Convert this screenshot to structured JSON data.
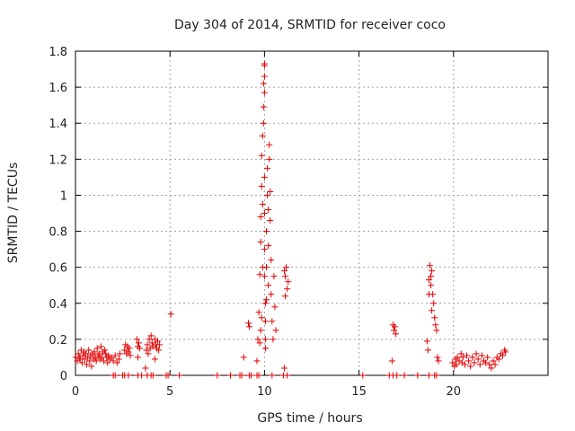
{
  "chart_data": {
    "type": "scatter",
    "title": "Day 304 of 2014, SRMTID for receiver coco",
    "xlabel": "GPS time / hours",
    "ylabel": "SRMTID / TECUs",
    "xlim": [
      0,
      25
    ],
    "ylim": [
      0,
      1.8
    ],
    "xticks": [
      "0",
      "5",
      "10",
      "15",
      "20"
    ],
    "yticks": [
      "0",
      "0.2",
      "0.4",
      "0.6",
      "0.8",
      "1",
      "1.2",
      "1.4",
      "1.6",
      "1.8"
    ],
    "grid": true,
    "marker": "+",
    "color": "#e00000",
    "series": [
      {
        "name": "SRMTID",
        "points": [
          [
            0.02,
            0.1
          ],
          [
            0.1,
            0.08
          ],
          [
            0.15,
            0.12
          ],
          [
            0.2,
            0.1
          ],
          [
            0.25,
            0.09
          ],
          [
            0.3,
            0.14
          ],
          [
            0.35,
            0.07
          ],
          [
            0.4,
            0.11
          ],
          [
            0.45,
            0.13
          ],
          [
            0.5,
            0.09
          ],
          [
            0.55,
            0.12
          ],
          [
            0.6,
            0.06
          ],
          [
            0.65,
            0.1
          ],
          [
            0.7,
            0.14
          ],
          [
            0.75,
            0.08
          ],
          [
            0.8,
            0.11
          ],
          [
            0.85,
            0.05
          ],
          [
            0.9,
            0.12
          ],
          [
            0.95,
            0.09
          ],
          [
            1.0,
            0.13
          ],
          [
            1.05,
            0.1
          ],
          [
            1.1,
            0.08
          ],
          [
            1.15,
            0.15
          ],
          [
            1.2,
            0.11
          ],
          [
            1.25,
            0.12
          ],
          [
            1.3,
            0.09
          ],
          [
            1.35,
            0.16
          ],
          [
            1.4,
            0.1
          ],
          [
            1.45,
            0.13
          ],
          [
            1.5,
            0.08
          ],
          [
            1.55,
            0.14
          ],
          [
            1.6,
            0.12
          ],
          [
            1.65,
            0.1
          ],
          [
            1.7,
            0.07
          ],
          [
            1.75,
            0.11
          ],
          [
            1.8,
            0.09
          ],
          [
            1.9,
            0.1
          ],
          [
            2.0,
            0.08
          ],
          [
            2.1,
            0.11
          ],
          [
            2.2,
            0.07
          ],
          [
            2.3,
            0.09
          ],
          [
            2.35,
            0.12
          ],
          [
            2.6,
            0.14
          ],
          [
            2.65,
            0.17
          ],
          [
            2.7,
            0.12
          ],
          [
            2.75,
            0.16
          ],
          [
            2.8,
            0.13
          ],
          [
            2.85,
            0.15
          ],
          [
            2.9,
            0.11
          ],
          [
            3.25,
            0.2
          ],
          [
            3.3,
            0.16
          ],
          [
            3.35,
            0.18
          ],
          [
            3.4,
            0.15
          ],
          [
            3.3,
            0.1
          ],
          [
            3.7,
            0.04
          ],
          [
            3.75,
            0.14
          ],
          [
            3.8,
            0.17
          ],
          [
            3.85,
            0.12
          ],
          [
            3.9,
            0.2
          ],
          [
            3.95,
            0.15
          ],
          [
            4.0,
            0.22
          ],
          [
            4.05,
            0.18
          ],
          [
            4.1,
            0.16
          ],
          [
            4.2,
            0.2
          ],
          [
            4.25,
            0.17
          ],
          [
            4.3,
            0.15
          ],
          [
            4.35,
            0.19
          ],
          [
            4.4,
            0.14
          ],
          [
            4.45,
            0.17
          ],
          [
            4.2,
            0.09
          ],
          [
            5.05,
            0.34
          ],
          [
            8.9,
            0.1
          ],
          [
            9.15,
            0.29
          ],
          [
            9.2,
            0.27
          ],
          [
            9.6,
            0.08
          ],
          [
            9.65,
            0.2
          ],
          [
            9.7,
            0.35
          ],
          [
            9.75,
            0.56
          ],
          [
            9.8,
            0.74
          ],
          [
            9.8,
            0.88
          ],
          [
            9.85,
            1.05
          ],
          [
            9.85,
            1.22
          ],
          [
            9.9,
            0.6
          ],
          [
            9.9,
            0.95
          ],
          [
            9.9,
            1.33
          ],
          [
            9.95,
            1.49
          ],
          [
            9.95,
            1.62
          ],
          [
            10.0,
            1.72
          ],
          [
            10.0,
            1.73
          ],
          [
            10.0,
            1.66
          ],
          [
            10.0,
            1.57
          ],
          [
            9.95,
            1.4
          ],
          [
            10.0,
            1.1
          ],
          [
            10.0,
            0.9
          ],
          [
            10.0,
            0.7
          ],
          [
            10.0,
            0.55
          ],
          [
            10.05,
            0.4
          ],
          [
            10.05,
            0.3
          ],
          [
            10.05,
            0.2
          ],
          [
            10.05,
            0.15
          ],
          [
            10.1,
            0.42
          ],
          [
            10.1,
            0.6
          ],
          [
            10.1,
            0.8
          ],
          [
            10.15,
            1.0
          ],
          [
            10.15,
            1.15
          ],
          [
            10.2,
            0.92
          ],
          [
            10.2,
            0.72
          ],
          [
            10.2,
            0.5
          ],
          [
            10.25,
            1.28
          ],
          [
            10.25,
            1.2
          ],
          [
            10.3,
            1.02
          ],
          [
            10.3,
            0.86
          ],
          [
            10.35,
            0.64
          ],
          [
            10.35,
            0.45
          ],
          [
            10.4,
            0.3
          ],
          [
            10.45,
            0.2
          ],
          [
            10.5,
            0.55
          ],
          [
            10.55,
            0.38
          ],
          [
            10.6,
            0.25
          ],
          [
            9.75,
            0.18
          ],
          [
            9.8,
            0.25
          ],
          [
            9.85,
            0.32
          ],
          [
            11.05,
            0.58
          ],
          [
            11.1,
            0.55
          ],
          [
            11.15,
            0.6
          ],
          [
            11.2,
            0.48
          ],
          [
            11.25,
            0.52
          ],
          [
            11.1,
            0.44
          ],
          [
            11.05,
            0.04
          ],
          [
            16.75,
            0.08
          ],
          [
            16.8,
            0.28
          ],
          [
            16.85,
            0.25
          ],
          [
            16.9,
            0.27
          ],
          [
            16.95,
            0.23
          ],
          [
            18.6,
            0.19
          ],
          [
            18.65,
            0.14
          ],
          [
            18.7,
            0.45
          ],
          [
            18.7,
            0.53
          ],
          [
            18.75,
            0.61
          ],
          [
            18.8,
            0.55
          ],
          [
            18.8,
            0.5
          ],
          [
            18.85,
            0.58
          ],
          [
            18.9,
            0.45
          ],
          [
            18.95,
            0.4
          ],
          [
            19.0,
            0.32
          ],
          [
            19.05,
            0.28
          ],
          [
            19.1,
            0.25
          ],
          [
            19.15,
            0.1
          ],
          [
            19.2,
            0.08
          ],
          [
            18.85,
            0.36
          ],
          [
            19.95,
            0.07
          ],
          [
            20.05,
            0.05
          ],
          [
            20.1,
            0.09
          ],
          [
            20.15,
            0.06
          ],
          [
            20.2,
            0.1
          ],
          [
            20.3,
            0.08
          ],
          [
            20.4,
            0.12
          ],
          [
            20.45,
            0.07
          ],
          [
            20.5,
            0.1
          ],
          [
            20.6,
            0.06
          ],
          [
            20.7,
            0.11
          ],
          [
            20.8,
            0.08
          ],
          [
            20.9,
            0.05
          ],
          [
            21.0,
            0.1
          ],
          [
            21.1,
            0.07
          ],
          [
            21.2,
            0.12
          ],
          [
            21.3,
            0.09
          ],
          [
            21.4,
            0.06
          ],
          [
            21.5,
            0.11
          ],
          [
            21.6,
            0.08
          ],
          [
            21.7,
            0.07
          ],
          [
            21.8,
            0.1
          ],
          [
            21.9,
            0.06
          ],
          [
            22.0,
            0.04
          ],
          [
            22.1,
            0.08
          ],
          [
            22.2,
            0.06
          ],
          [
            22.3,
            0.1
          ],
          [
            22.4,
            0.09
          ],
          [
            22.5,
            0.12
          ],
          [
            22.6,
            0.11
          ],
          [
            22.7,
            0.14
          ],
          [
            22.75,
            0.13
          ]
        ]
      }
    ],
    "zero_marks_x": [
      2.0,
      2.1,
      2.5,
      2.6,
      2.8,
      3.3,
      3.5,
      3.8,
      4.0,
      4.1,
      4.8,
      4.9,
      5.5,
      7.5,
      8.2,
      8.7,
      8.8,
      9.2,
      9.3,
      9.6,
      9.7,
      10.4,
      11.0,
      11.2,
      15.2,
      16.6,
      16.8,
      17.0,
      17.4,
      18.1,
      18.7,
      19.0,
      19.1
    ]
  }
}
